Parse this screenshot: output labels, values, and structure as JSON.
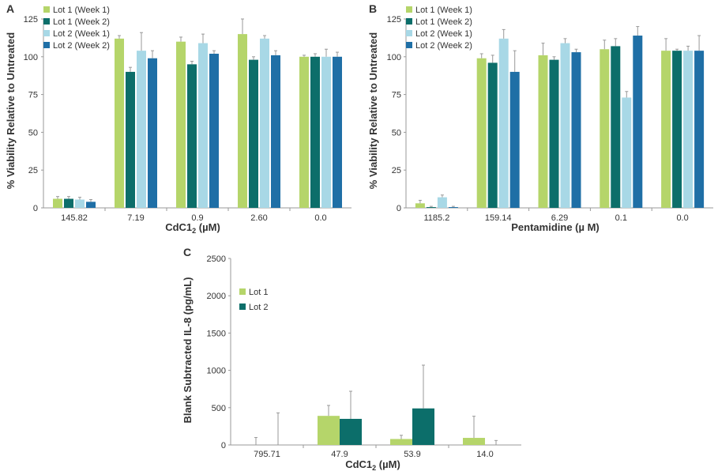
{
  "colors": {
    "lot1_week1": "#b5d56a",
    "lot1_week2": "#0c6e6a",
    "lot2_week1": "#a8d8e6",
    "lot2_week2": "#1f6fa6",
    "axis": "#999999",
    "error": "#999999"
  },
  "chart_data": [
    {
      "panel": "A",
      "type": "bar",
      "xlabel_base": "CdC1",
      "xlabel_sub": "2",
      "xlabel_unit": " (µM)",
      "ylabel": "% Viability Relative to Untreated",
      "ylim": [
        0,
        125
      ],
      "yticks": [
        "0",
        "25",
        "50",
        "75",
        "100",
        "125"
      ],
      "categories": [
        "145.82",
        "7.19",
        "0.9",
        "2.60",
        "0.0"
      ],
      "series": [
        {
          "name": "Lot 1 (Week 1)",
          "color_key": "lot1_week1",
          "values": [
            6,
            112,
            110,
            115,
            100
          ],
          "errors": [
            1.5,
            2,
            3,
            10,
            1
          ]
        },
        {
          "name": "Lot 1 (Week 2)",
          "color_key": "lot1_week2",
          "values": [
            6,
            90,
            95,
            98,
            100
          ],
          "errors": [
            1.5,
            3,
            2,
            2,
            2
          ]
        },
        {
          "name": "Lot 2 (Week 1)",
          "color_key": "lot2_week1",
          "values": [
            5.5,
            104,
            109,
            112,
            100
          ],
          "errors": [
            1.5,
            12,
            6,
            2,
            5
          ]
        },
        {
          "name": "Lot 2 (Week 2)",
          "color_key": "lot2_week2",
          "values": [
            4,
            99,
            102,
            101,
            100
          ],
          "errors": [
            1.5,
            5,
            2,
            3,
            3
          ]
        }
      ]
    },
    {
      "panel": "B",
      "type": "bar",
      "xlabel_base": "Pentamidine (µ M)",
      "xlabel_sub": "",
      "xlabel_unit": "",
      "ylabel": "% Viability Relative to Untreated",
      "ylim": [
        0,
        125
      ],
      "yticks": [
        "0",
        "25",
        "50",
        "75",
        "100",
        "125"
      ],
      "categories": [
        "1185.2",
        "159.14",
        "6.29",
        "0.1",
        "0.0"
      ],
      "series": [
        {
          "name": "Lot 1 (Week 1)",
          "color_key": "lot1_week1",
          "values": [
            3,
            99,
            101,
            105,
            104
          ],
          "errors": [
            2,
            3,
            8,
            6,
            8
          ]
        },
        {
          "name": "Lot 1 (Week 2)",
          "color_key": "lot1_week2",
          "values": [
            0.5,
            96,
            98,
            107,
            104
          ],
          "errors": [
            0.5,
            5,
            2,
            5,
            1
          ]
        },
        {
          "name": "Lot 2 (Week 1)",
          "color_key": "lot2_week1",
          "values": [
            7,
            112,
            109,
            73,
            104
          ],
          "errors": [
            1.5,
            6,
            3,
            4,
            3
          ]
        },
        {
          "name": "Lot 2 (Week 2)",
          "color_key": "lot2_week2",
          "values": [
            0.5,
            90,
            103,
            114,
            104
          ],
          "errors": [
            0.5,
            14,
            2,
            6,
            10
          ]
        }
      ]
    },
    {
      "panel": "C",
      "type": "bar",
      "xlabel_base": "CdC1",
      "xlabel_sub": "2",
      "xlabel_unit": " (µM)",
      "ylabel": "Blank Subtracted IL-8 (pg/mL)",
      "ylim": [
        0,
        2500
      ],
      "yticks": [
        "0",
        "500",
        "1000",
        "1500",
        "2000",
        "2500"
      ],
      "categories": [
        "795.71",
        "47.9",
        "53.9",
        "14.0"
      ],
      "series": [
        {
          "name": "Lot 1",
          "color_key": "lot1_week1",
          "values": [
            0,
            390,
            80,
            95
          ],
          "errors": [
            100,
            140,
            50,
            290
          ]
        },
        {
          "name": "Lot 2",
          "color_key": "lot1_week2",
          "values": [
            0,
            350,
            490,
            0
          ],
          "errors": [
            430,
            370,
            580,
            60
          ]
        }
      ]
    }
  ]
}
